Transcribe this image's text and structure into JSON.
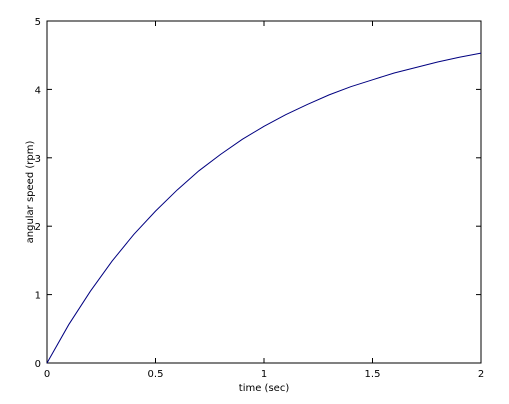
{
  "chart_data": {
    "type": "line",
    "x_label": "time (sec)",
    "y_label": "angular speed (rpm)",
    "x": [
      0,
      0.1,
      0.2,
      0.3,
      0.4,
      0.5,
      0.6,
      0.7,
      0.8,
      0.9,
      1.0,
      1.1,
      1.2,
      1.3,
      1.4,
      1.5,
      1.6,
      1.7,
      1.8,
      1.9,
      2.0
    ],
    "series": [
      {
        "color": "#000080",
        "values": [
          0,
          0.56,
          1.05,
          1.49,
          1.88,
          2.22,
          2.53,
          2.81,
          3.05,
          3.27,
          3.46,
          3.63,
          3.78,
          3.92,
          4.04,
          4.14,
          4.24,
          4.32,
          4.4,
          4.47,
          4.53
        ]
      }
    ],
    "xlim": [
      0,
      2
    ],
    "xticks": [
      0,
      0.5,
      1,
      1.5,
      2
    ],
    "ylim": [
      0,
      5
    ],
    "yticks": [
      0,
      1,
      2,
      3,
      4,
      5
    ]
  }
}
